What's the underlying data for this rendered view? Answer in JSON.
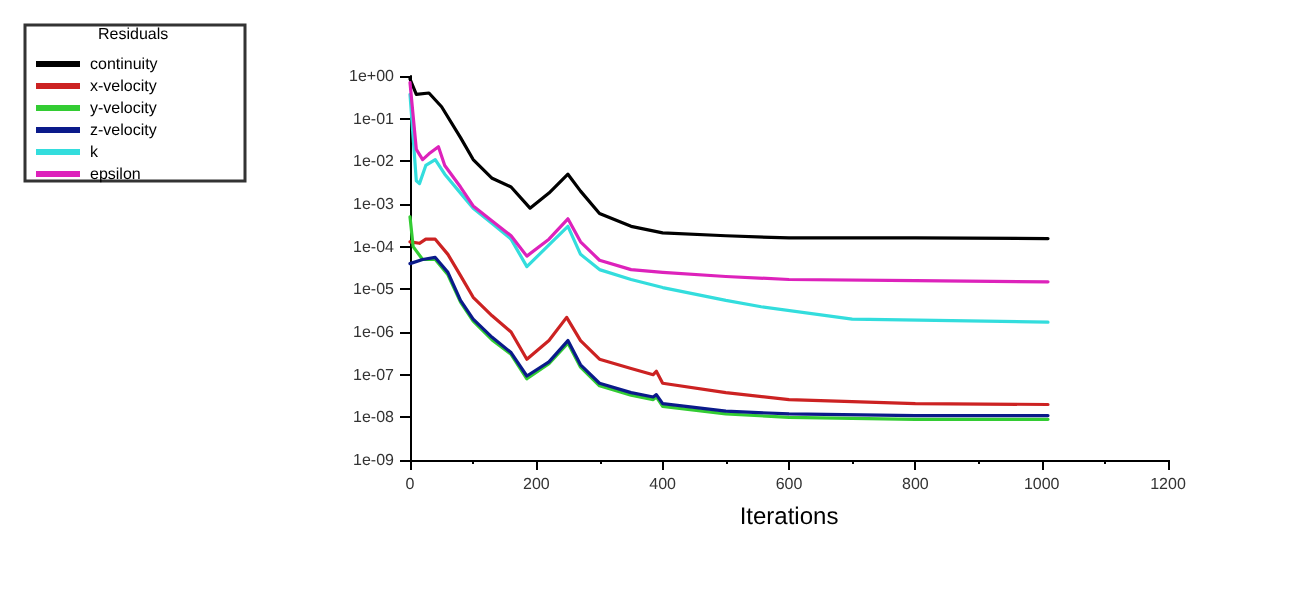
{
  "chart_data": {
    "type": "line",
    "xlabel": "Iterations",
    "legend_title": "Residuals",
    "legend": "top left",
    "log": "y",
    "grid": false,
    "marker": "none",
    "line_style": "solid",
    "xlim": [
      0,
      1200
    ],
    "xticks": [
      0,
      200,
      400,
      600,
      800,
      1000,
      1200
    ],
    "ylim": [
      1e-09,
      1
    ],
    "yticks": [
      {
        "value": 1,
        "label": "1e+00"
      },
      {
        "value": 0.1,
        "label": "1e-01"
      },
      {
        "value": 0.01,
        "label": "1e-02"
      },
      {
        "value": 0.001,
        "label": "1e-03"
      },
      {
        "value": 0.0001,
        "label": "1e-04"
      },
      {
        "value": 1e-05,
        "label": "1e-05"
      },
      {
        "value": 1e-06,
        "label": "1e-06"
      },
      {
        "value": 1e-07,
        "label": "1e-07"
      },
      {
        "value": 1e-08,
        "label": "1e-08"
      },
      {
        "value": 1e-09,
        "label": "1e-09"
      }
    ],
    "series": [
      {
        "name": "continuity",
        "color": "#000000",
        "x": [
          0,
          10,
          30,
          50,
          80,
          100,
          130,
          160,
          190,
          220,
          250,
          270,
          300,
          350,
          400,
          500,
          600,
          800,
          1010
        ],
        "values": [
          0.85,
          0.37,
          0.4,
          0.19,
          0.036,
          0.011,
          0.004,
          0.0025,
          0.0008,
          0.0018,
          0.005,
          0.002,
          0.0006,
          0.0003,
          0.00021,
          0.00018,
          0.00016,
          0.00016,
          0.000155
        ]
      },
      {
        "name": "x-velocity",
        "color": "#cc2222",
        "x": [
          0,
          15,
          25,
          40,
          60,
          80,
          100,
          130,
          160,
          185,
          220,
          248,
          270,
          300,
          350,
          385,
          390,
          400,
          500,
          600,
          800,
          1010
        ],
        "values": [
          0.00013,
          0.00012,
          0.00015,
          0.00015,
          6.6e-05,
          2.1e-05,
          6.5e-06,
          2.4e-06,
          1e-06,
          2.3e-07,
          6.3e-07,
          2.2e-06,
          6.3e-07,
          2.3e-07,
          1.4e-07,
          1e-07,
          1.2e-07,
          6.3e-08,
          3.8e-08,
          2.6e-08,
          2.1e-08,
          2e-08
        ]
      },
      {
        "name": "y-velocity",
        "color": "#33cc33",
        "x": [
          0,
          5,
          20,
          40,
          60,
          80,
          100,
          130,
          160,
          185,
          220,
          250,
          270,
          300,
          350,
          385,
          390,
          400,
          500,
          600,
          800,
          1010
        ],
        "values": [
          0.0005,
          0.0001,
          5e-05,
          5e-05,
          2.2e-05,
          5e-06,
          1.8e-06,
          6.5e-07,
          3e-07,
          8e-08,
          1.8e-07,
          5.5e-07,
          1.5e-07,
          5.5e-08,
          3.3e-08,
          2.6e-08,
          3e-08,
          1.8e-08,
          1.2e-08,
          1e-08,
          9e-09,
          9e-09
        ]
      },
      {
        "name": "z-velocity",
        "color": "#0a1a8a",
        "x": [
          0,
          20,
          40,
          60,
          80,
          100,
          130,
          160,
          185,
          220,
          250,
          270,
          300,
          350,
          385,
          390,
          400,
          500,
          600,
          800,
          1010
        ],
        "values": [
          4e-05,
          5e-05,
          5.6e-05,
          2.5e-05,
          5.5e-06,
          2e-06,
          7.5e-07,
          3.3e-07,
          9.3e-08,
          2e-07,
          6.3e-07,
          1.7e-07,
          6.3e-08,
          3.8e-08,
          3e-08,
          3.4e-08,
          2.1e-08,
          1.4e-08,
          1.2e-08,
          1.1e-08,
          1.1e-08
        ]
      },
      {
        "name": "k",
        "color": "#33dddd",
        "x": [
          0,
          10,
          15,
          25,
          40,
          55,
          80,
          100,
          130,
          160,
          185,
          220,
          250,
          270,
          300,
          350,
          400,
          500,
          556,
          700,
          1010
        ],
        "values": [
          0.37,
          0.0035,
          0.003,
          0.008,
          0.011,
          0.005,
          0.0018,
          0.0008,
          0.00035,
          0.00015,
          3.4e-05,
          0.00011,
          0.0003,
          6.6e-05,
          2.9e-05,
          1.7e-05,
          1.1e-05,
          5.5e-06,
          3.9e-06,
          2e-06,
          1.7e-06
        ]
      },
      {
        "name": "epsilon",
        "color": "#dd22bb",
        "x": [
          0,
          10,
          20,
          30,
          45,
          55,
          80,
          100,
          130,
          160,
          185,
          220,
          250,
          270,
          300,
          350,
          400,
          500,
          600,
          800,
          1010
        ],
        "values": [
          0.7,
          0.019,
          0.011,
          0.015,
          0.022,
          0.008,
          0.0025,
          0.0009,
          0.0004,
          0.00018,
          6e-05,
          0.00015,
          0.00045,
          0.00013,
          4.8e-05,
          2.9e-05,
          2.5e-05,
          2e-05,
          1.7e-05,
          1.6e-05,
          1.5e-05
        ]
      }
    ]
  }
}
